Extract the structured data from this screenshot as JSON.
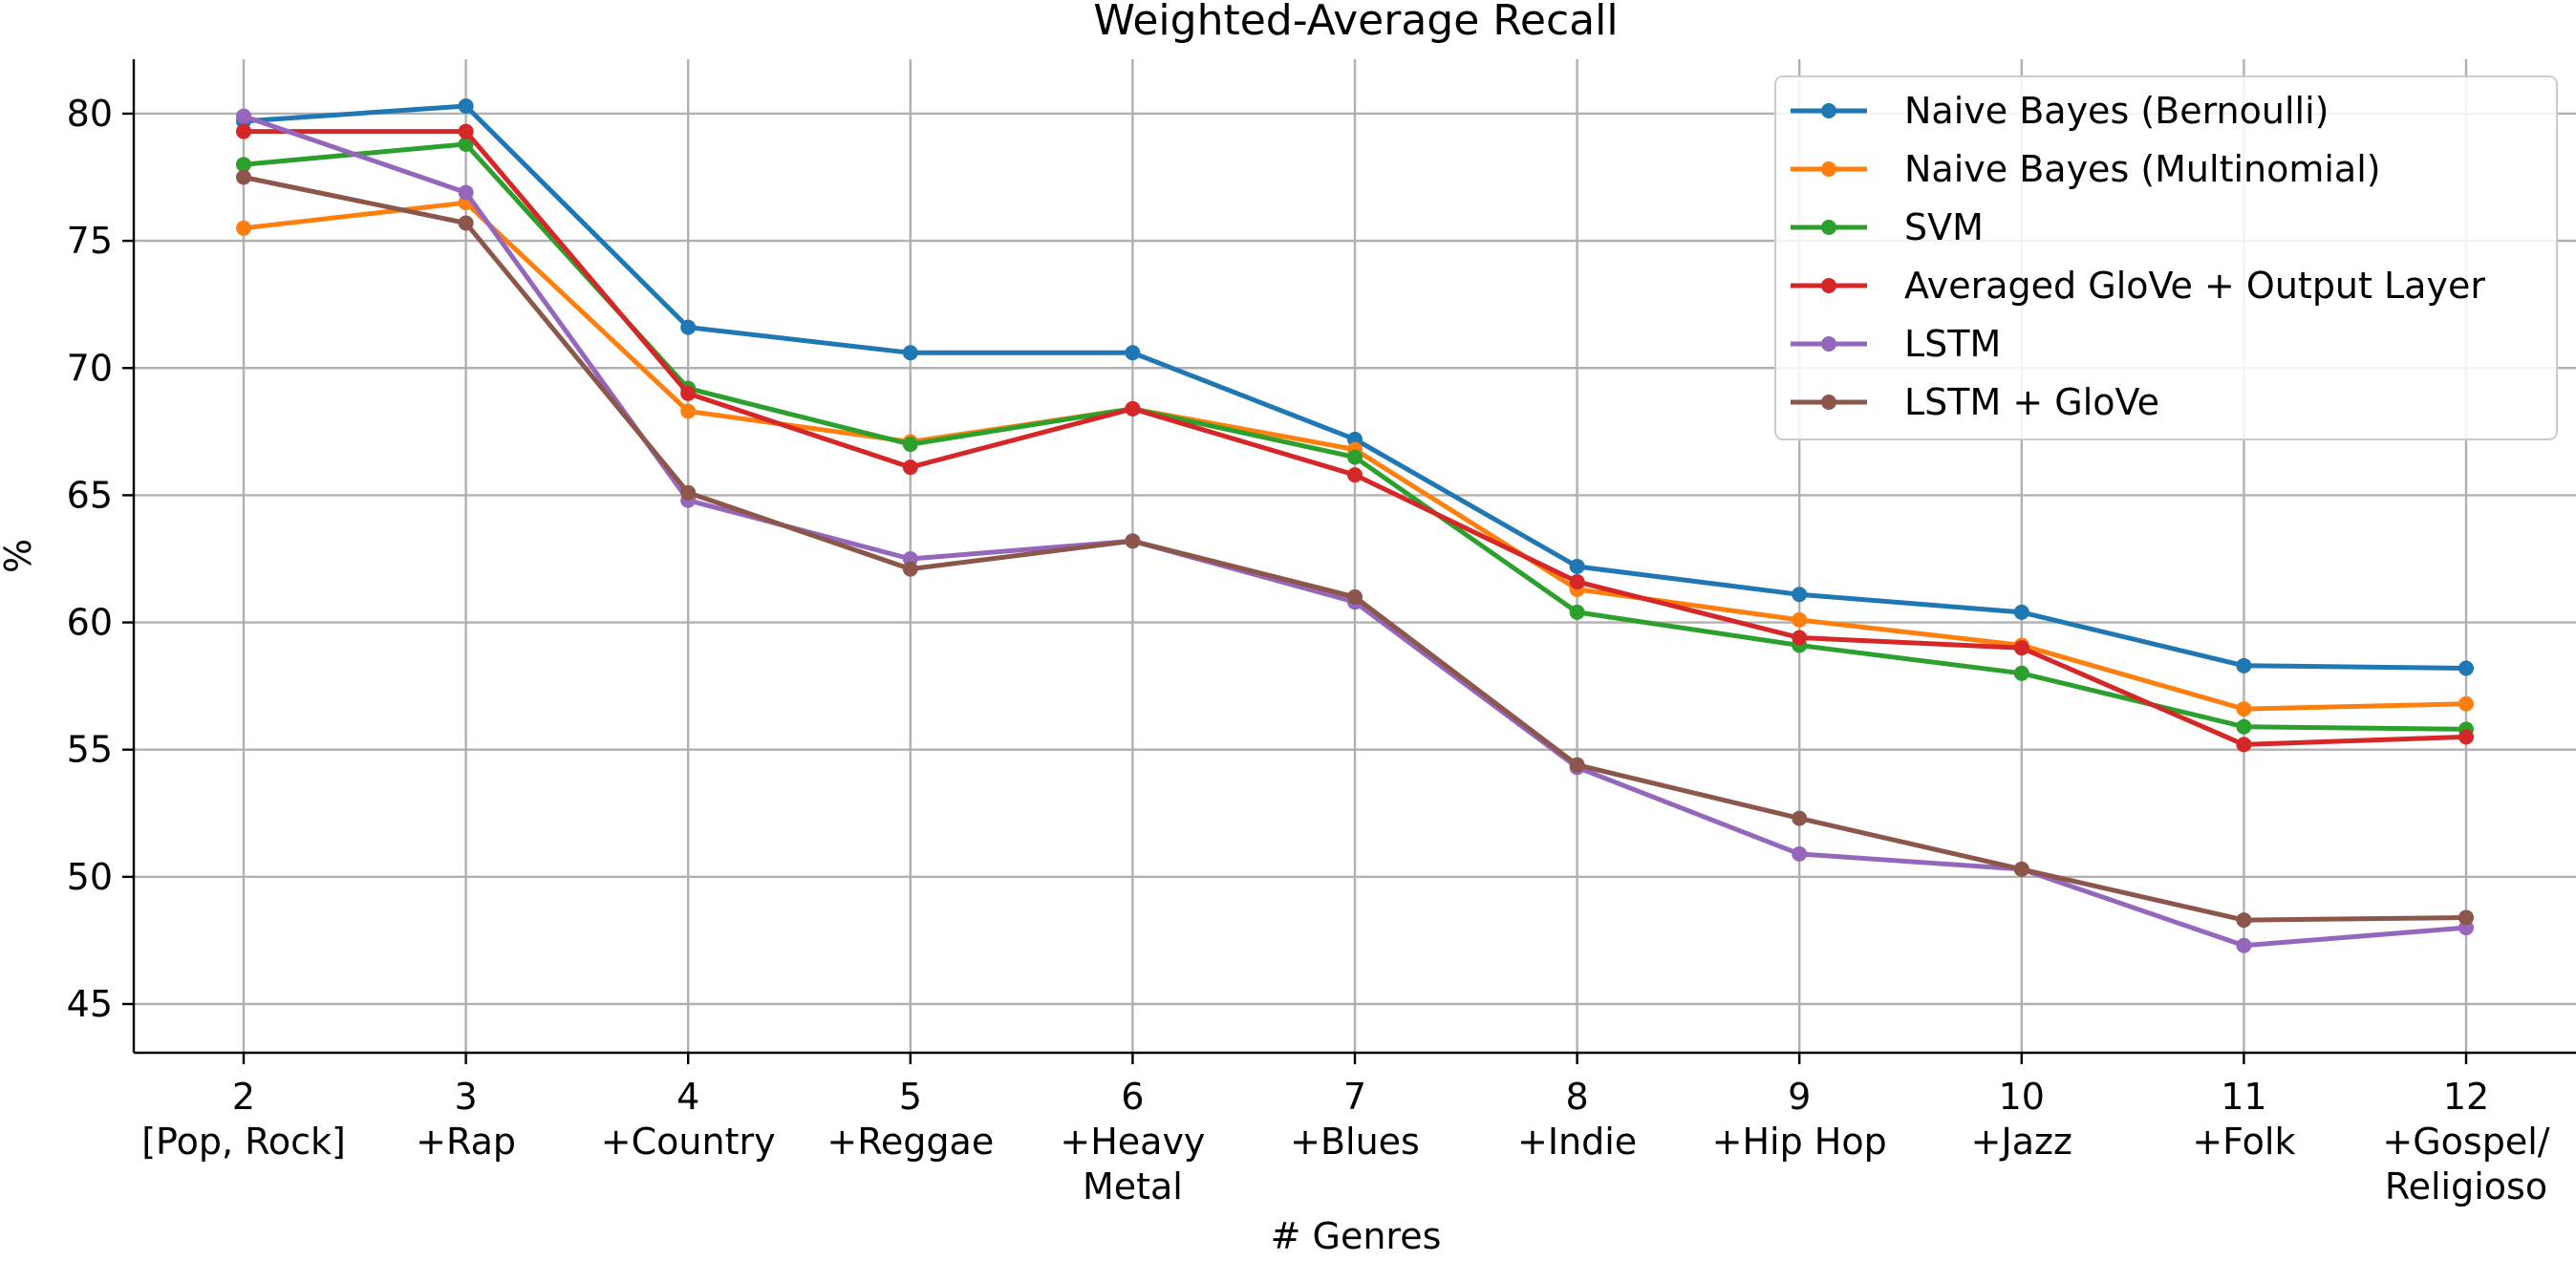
{
  "chart_data": {
    "type": "line",
    "title": "Weighted-Average Recall",
    "xlabel": "# Genres",
    "ylabel": "%",
    "x": [
      2,
      3,
      4,
      5,
      6,
      7,
      8,
      9,
      10,
      11,
      12
    ],
    "x_tick_labels": [
      [
        "2",
        "[Pop, Rock]"
      ],
      [
        "3",
        "+Rap"
      ],
      [
        "4",
        "+Country"
      ],
      [
        "5",
        "+Reggae"
      ],
      [
        "6",
        "+Heavy",
        "Metal"
      ],
      [
        "7",
        "+Blues"
      ],
      [
        "8",
        "+Indie"
      ],
      [
        "9",
        "+Hip Hop"
      ],
      [
        "10",
        "+Jazz"
      ],
      [
        "11",
        "+Folk"
      ],
      [
        "12",
        "+Gospel/",
        "Religioso"
      ]
    ],
    "xlim": [
      1.5,
      12.5
    ],
    "ylim": [
      43,
      82
    ],
    "y_ticks": [
      45,
      50,
      55,
      60,
      65,
      70,
      75,
      80
    ],
    "grid": true,
    "legend_position": "top-right",
    "series": [
      {
        "name": "Naive Bayes (Bernoulli)",
        "color": "#1f77b4",
        "values": [
          79.7,
          80.3,
          71.6,
          70.6,
          70.6,
          67.2,
          62.2,
          61.1,
          60.4,
          58.3,
          58.2
        ]
      },
      {
        "name": "Naive Bayes (Multinomial)",
        "color": "#ff7f0e",
        "values": [
          75.5,
          76.5,
          68.3,
          67.1,
          68.4,
          66.8,
          61.3,
          60.1,
          59.1,
          56.6,
          56.8
        ]
      },
      {
        "name": "SVM",
        "color": "#2ca02c",
        "values": [
          78.0,
          78.8,
          69.2,
          67.0,
          68.4,
          66.5,
          60.4,
          59.1,
          58.0,
          55.9,
          55.8
        ]
      },
      {
        "name": "Averaged GloVe + Output Layer",
        "color": "#d62728",
        "values": [
          79.3,
          79.3,
          69.0,
          66.1,
          68.4,
          65.8,
          61.6,
          59.4,
          59.0,
          55.2,
          55.5
        ]
      },
      {
        "name": "LSTM",
        "color": "#9467bd",
        "values": [
          79.9,
          76.9,
          64.8,
          62.5,
          63.2,
          60.8,
          54.3,
          50.9,
          50.3,
          47.3,
          48.0
        ]
      },
      {
        "name": "LSTM + GloVe",
        "color": "#8c564b",
        "values": [
          77.5,
          75.7,
          65.1,
          62.1,
          63.2,
          61.0,
          54.4,
          52.3,
          50.3,
          48.3,
          48.4
        ]
      }
    ]
  }
}
